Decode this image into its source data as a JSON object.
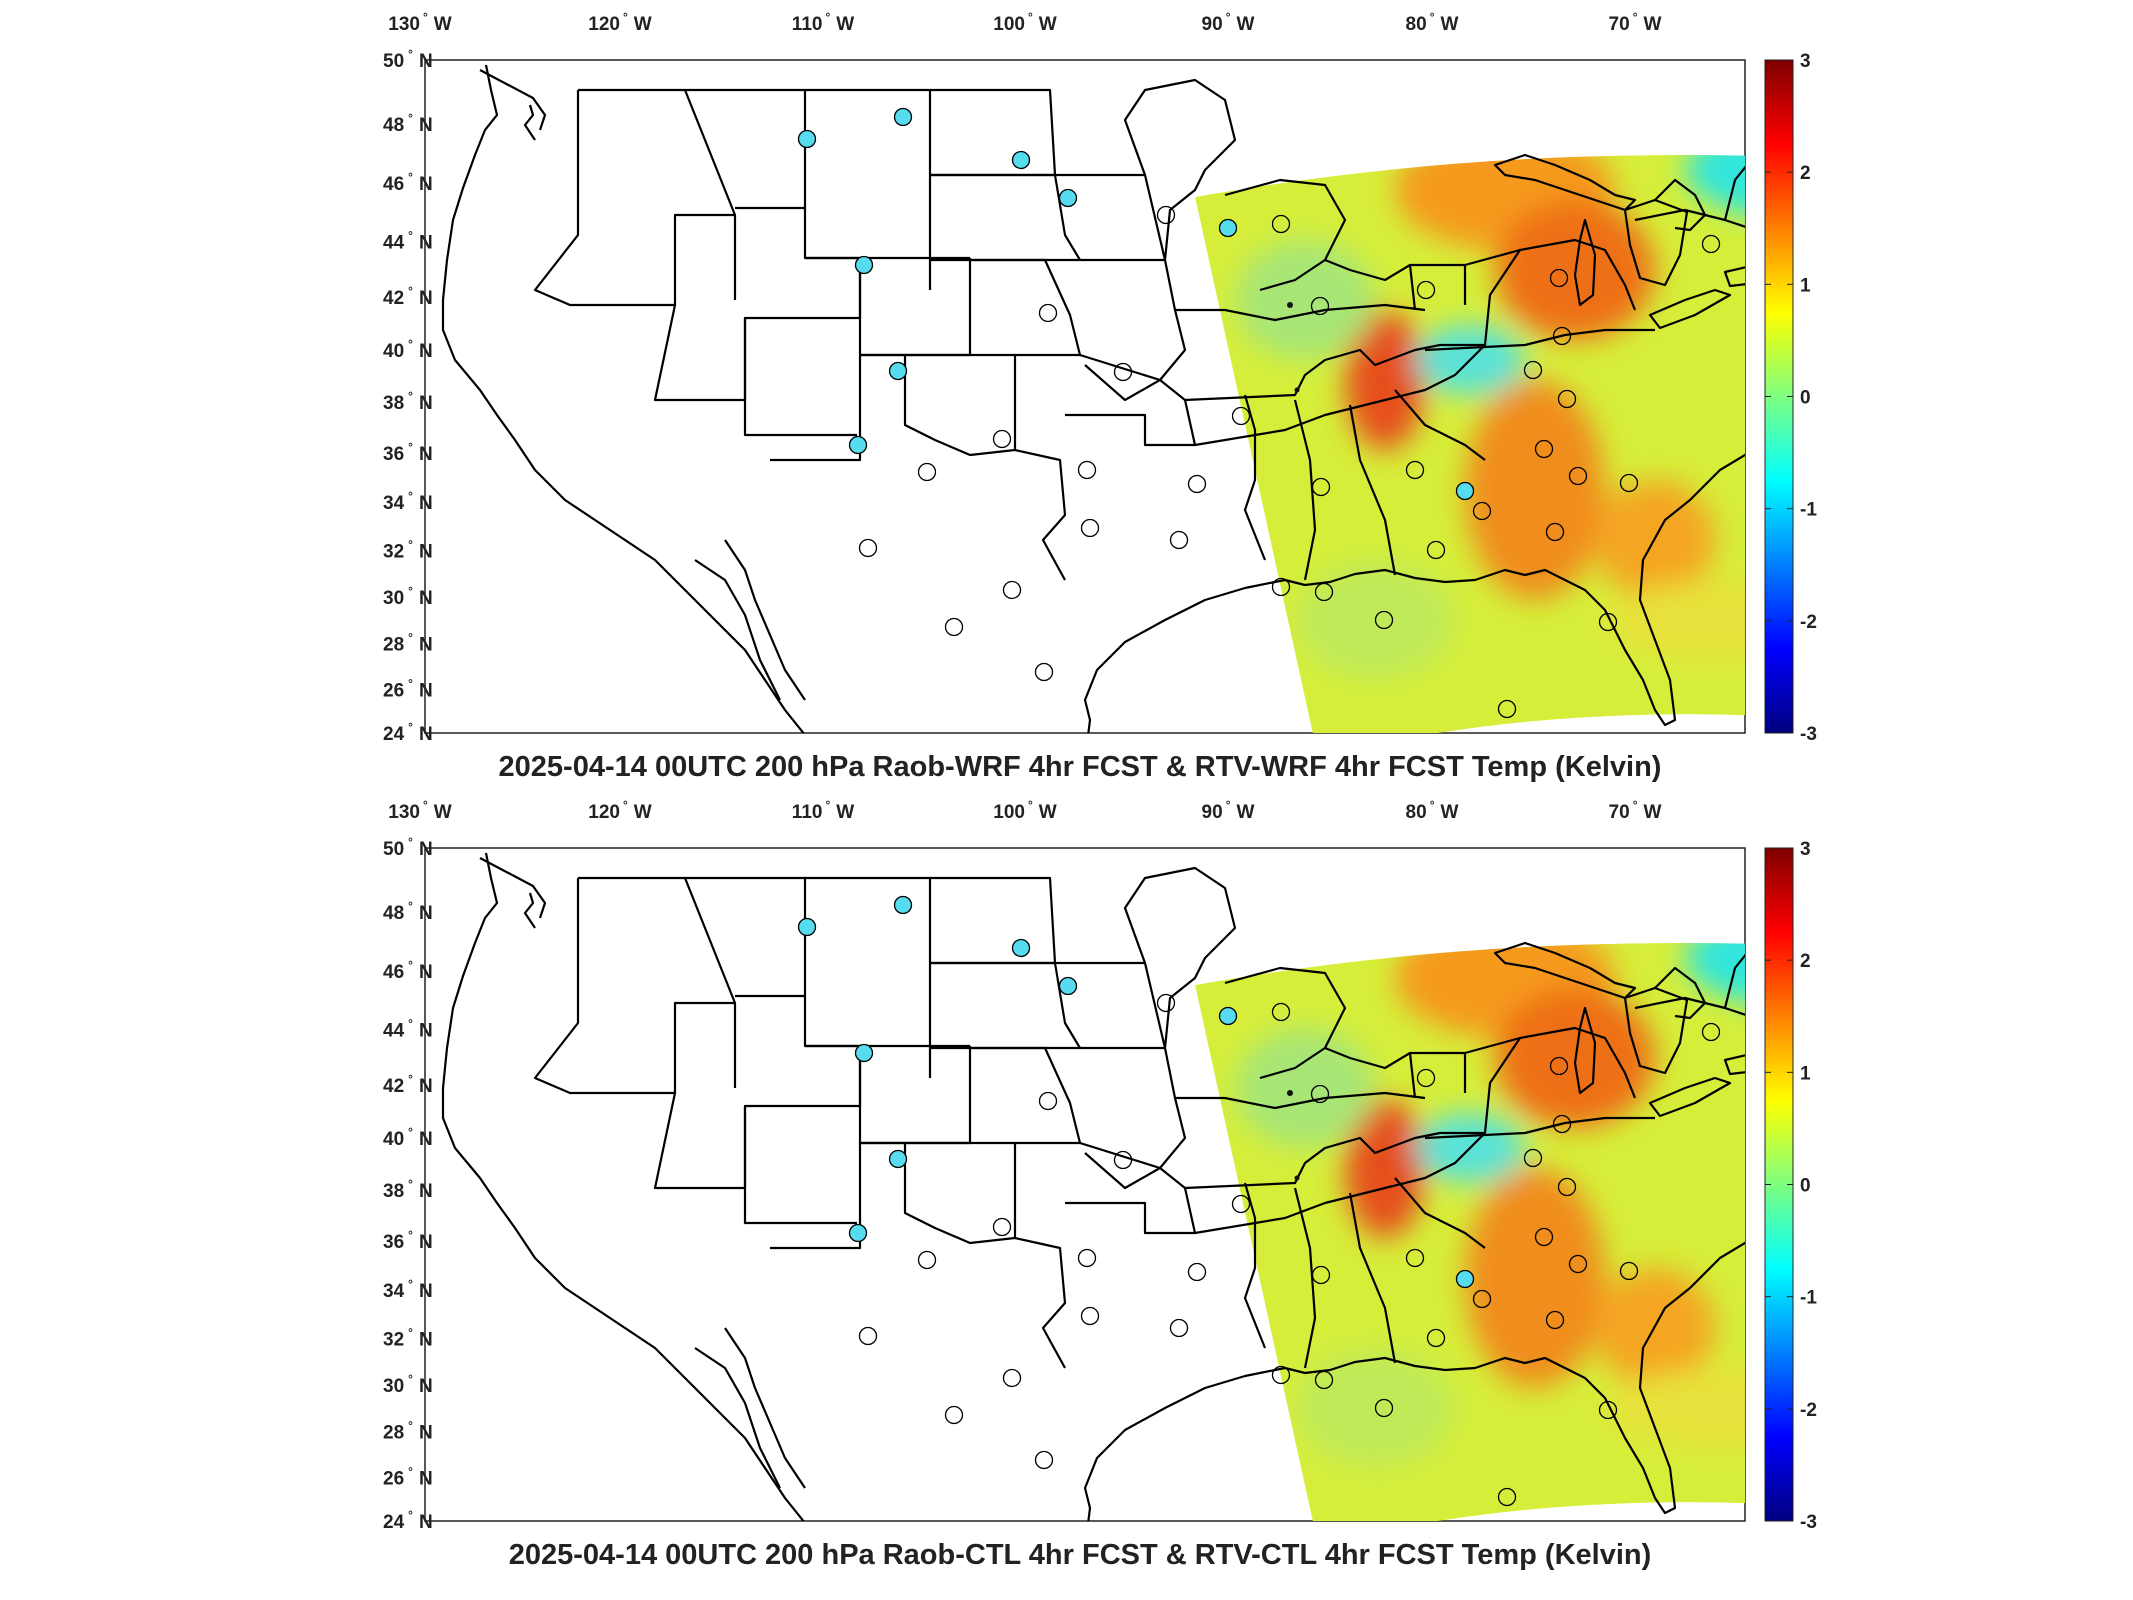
{
  "colorbar": {
    "min": -3,
    "max": 3,
    "ticks": [
      "3",
      "2",
      "1",
      "0",
      "-1",
      "-2",
      "-3"
    ],
    "colormap": "jet",
    "stops": [
      "#00007f",
      "#0000ff",
      "#00ffff",
      "#7fff7f",
      "#ffff00",
      "#ff0000",
      "#7f0000"
    ]
  },
  "lon_ticks": [
    "130",
    "120",
    "110",
    "100",
    "90",
    "80",
    "70"
  ],
  "lon_suffix": "W",
  "lat_ticks": [
    "50",
    "48",
    "46",
    "44",
    "42",
    "40",
    "38",
    "36",
    "34",
    "32",
    "30",
    "28",
    "26",
    "24"
  ],
  "lat_suffix": "N",
  "degree_symbol": "°",
  "panels": [
    {
      "title": "2025-04-14 00UTC 200 hPa Raob-WRF 4hr FCST & RTV-WRF 4hr FCST Temp (Kelvin)",
      "station_fill": "#56dcee"
    },
    {
      "title": "2025-04-14 00UTC 200 hPa Raob-CTL 4hr FCST & RTV-CTL 4hr FCST Temp (Kelvin)",
      "station_fill": "#56dcee"
    }
  ]
}
